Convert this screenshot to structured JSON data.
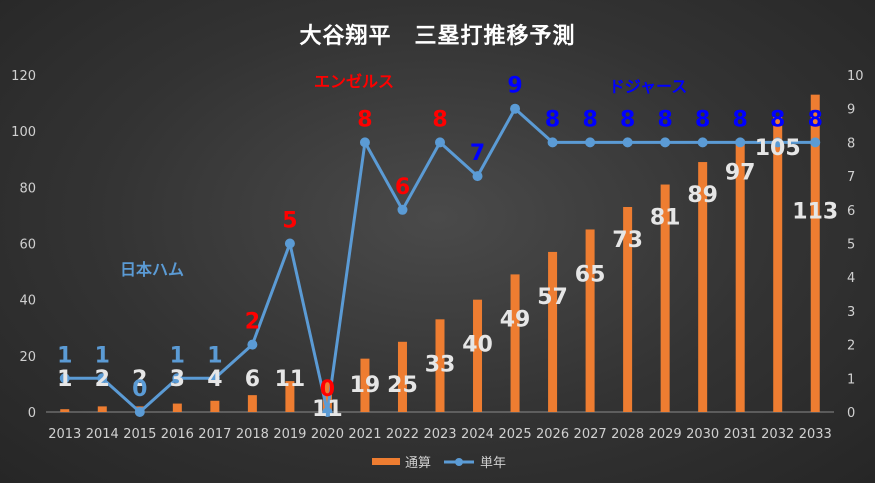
{
  "title": "大谷翔平　三塁打推移予測",
  "chart_data": {
    "type": "bar+line",
    "categories": [
      "2013",
      "2014",
      "2015",
      "2016",
      "2017",
      "2018",
      "2019",
      "2020",
      "2021",
      "2022",
      "2023",
      "2024",
      "2025",
      "2026",
      "2027",
      "2028",
      "2029",
      "2030",
      "2031",
      "2032",
      "2033"
    ],
    "series": [
      {
        "name": "通算",
        "type": "bar",
        "axis": "left",
        "values": [
          1,
          2,
          2,
          3,
          4,
          6,
          11,
          11,
          19,
          25,
          33,
          40,
          49,
          57,
          65,
          73,
          81,
          89,
          97,
          105,
          113
        ],
        "color": "#ee7d31"
      },
      {
        "name": "単年",
        "type": "line",
        "axis": "right",
        "values": [
          1,
          1,
          0,
          1,
          1,
          2,
          5,
          0,
          8,
          6,
          8,
          7,
          9,
          8,
          8,
          8,
          8,
          8,
          8,
          8,
          8
        ],
        "color": "#5b9bd5"
      }
    ],
    "y_left": {
      "min": 0,
      "max": 120,
      "ticks": [
        0,
        20,
        40,
        60,
        80,
        100,
        120
      ]
    },
    "y_right": {
      "min": 0,
      "max": 10,
      "ticks": [
        0,
        1,
        2,
        3,
        4,
        5,
        6,
        7,
        8,
        9,
        10
      ]
    },
    "annual_label_colors": [
      "#5b9bd5",
      "#5b9bd5",
      "#5b9bd5",
      "#5b9bd5",
      "#5b9bd5",
      "#ff0000",
      "#ff0000",
      "#ff0000",
      "#ff0000",
      "#ff0000",
      "#ff0000",
      "#0000ff",
      "#0000ff",
      "#0000ff",
      "#0000ff",
      "#0000ff",
      "#0000ff",
      "#0000ff",
      "#0000ff",
      "#0000ff",
      "#0000ff"
    ],
    "annotations": [
      {
        "text": "日本ハム",
        "color": "#5b9bd5"
      },
      {
        "text": "エンゼルス",
        "color": "#ff0000"
      },
      {
        "text": "ドジャース",
        "color": "#0000ff"
      }
    ],
    "legend": {
      "position": "bottom"
    },
    "grid": false
  }
}
